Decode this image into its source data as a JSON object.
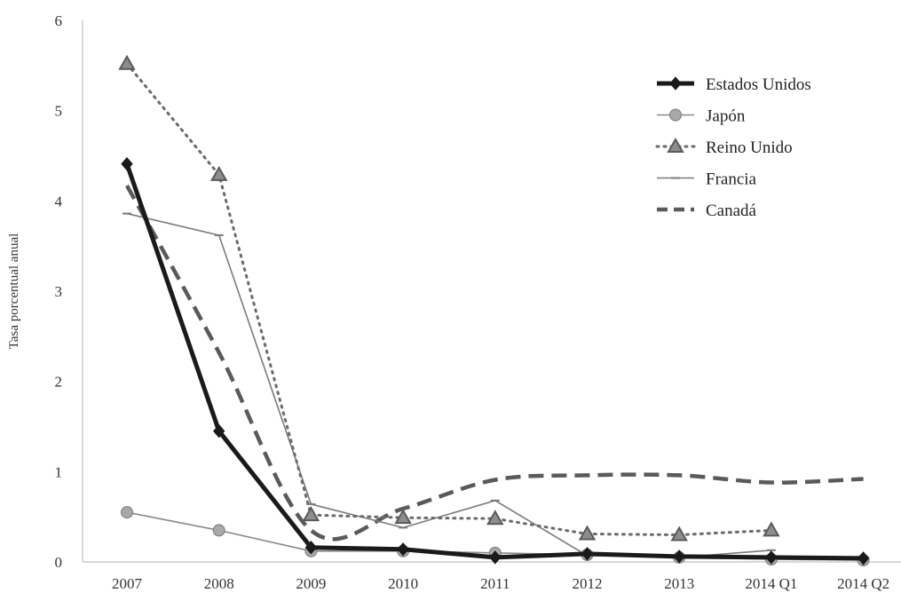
{
  "chart_data": {
    "type": "line",
    "title": "",
    "xlabel": "",
    "ylabel": "Tasa porcentual anual",
    "ylim": [
      0,
      6
    ],
    "yticks": [
      "0",
      "1",
      "2",
      "3",
      "4",
      "5",
      "6"
    ],
    "categories": [
      "2007",
      "2008",
      "2009",
      "2010",
      "2011",
      "2012",
      "2013",
      "2014 Q1",
      "2014 Q2"
    ],
    "grid": false,
    "legend": "top-right",
    "series": [
      {
        "name": "Estados Unidos",
        "color": "#1a1a1a",
        "marker": "diamond",
        "style": "solid-thick",
        "values": [
          4.41,
          1.45,
          0.16,
          0.14,
          0.05,
          0.09,
          0.06,
          0.05,
          0.04
        ]
      },
      {
        "name": "Japón",
        "color": "#8a8a8a",
        "marker": "circle",
        "style": "solid-thin",
        "values": [
          0.55,
          0.35,
          0.12,
          0.12,
          0.1,
          0.08,
          0.05,
          0.03,
          0.02
        ]
      },
      {
        "name": "Reino Unido",
        "color": "#6a6a6a",
        "marker": "triangle",
        "style": "dotted",
        "values": [
          5.52,
          4.29,
          0.52,
          0.49,
          0.48,
          0.31,
          0.3,
          0.35,
          null
        ]
      },
      {
        "name": "Francia",
        "color": "#7a7a7a",
        "marker": "dash",
        "style": "solid-thin",
        "values": [
          3.86,
          3.62,
          0.64,
          0.38,
          0.68,
          0.07,
          0.05,
          0.13,
          null
        ]
      },
      {
        "name": "Canadá",
        "color": "#5a5a5a",
        "marker": "none",
        "style": "dashed-thick",
        "values": [
          4.17,
          2.32,
          0.35,
          0.59,
          0.91,
          0.96,
          0.96,
          0.88,
          0.92
        ]
      }
    ]
  }
}
